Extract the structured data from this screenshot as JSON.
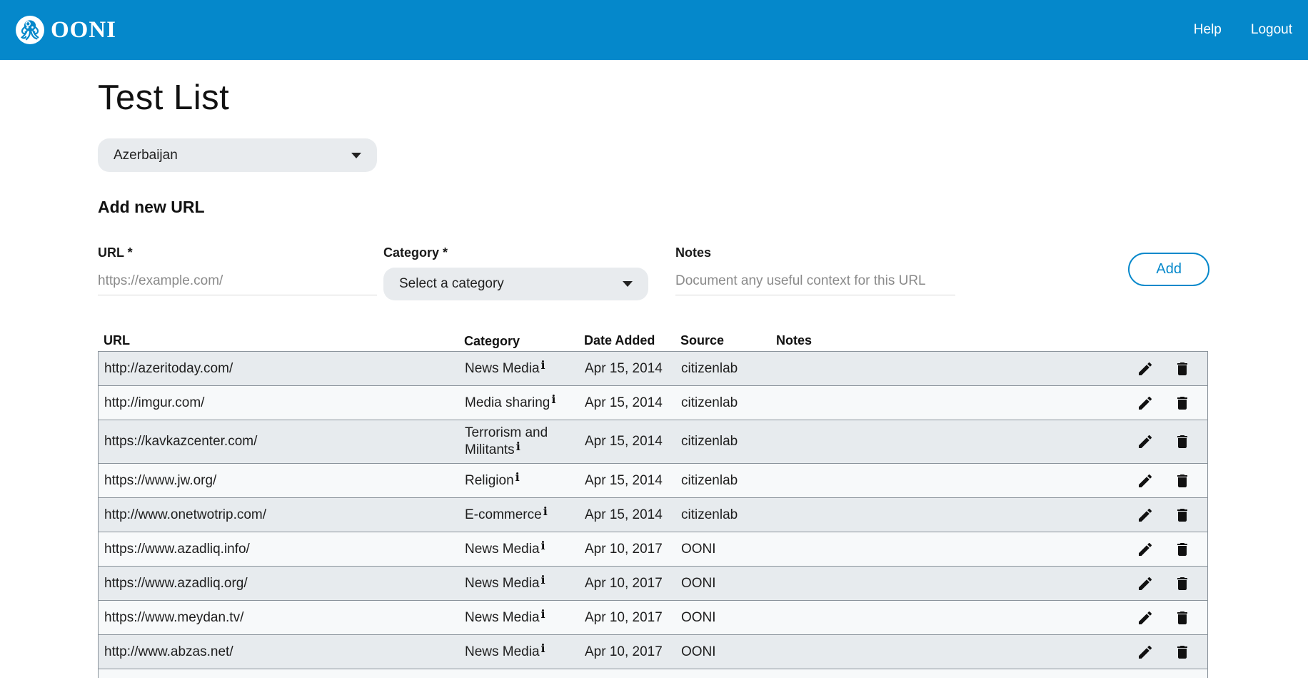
{
  "header": {
    "brand": "OONI",
    "nav": [
      {
        "label": "Help"
      },
      {
        "label": "Logout"
      }
    ]
  },
  "page": {
    "title": "Test List",
    "country_selector": {
      "value": "Azerbaijan"
    },
    "section_title": "Add new URL"
  },
  "form": {
    "url": {
      "label": "URL *",
      "placeholder": "https://example.com/",
      "value": ""
    },
    "category": {
      "label": "Category *",
      "placeholder": "Select a category"
    },
    "notes": {
      "label": "Notes",
      "placeholder": "Document any useful context for this URL",
      "value": ""
    },
    "add_button_label": "Add"
  },
  "table": {
    "columns": [
      "URL",
      "Category",
      "Date Added",
      "Source",
      "Notes"
    ],
    "rows": [
      {
        "url": "http://azeritoday.com/",
        "category": "News Media",
        "date_added": "Apr 15, 2014",
        "source": "citizenlab",
        "notes": ""
      },
      {
        "url": "http://imgur.com/",
        "category": "Media sharing",
        "date_added": "Apr 15, 2014",
        "source": "citizenlab",
        "notes": ""
      },
      {
        "url": "https://kavkazcenter.com/",
        "category": "Terrorism and Militants",
        "date_added": "Apr 15, 2014",
        "source": "citizenlab",
        "notes": ""
      },
      {
        "url": "https://www.jw.org/",
        "category": "Religion",
        "date_added": "Apr 15, 2014",
        "source": "citizenlab",
        "notes": ""
      },
      {
        "url": "http://www.onetwotrip.com/",
        "category": "E-commerce",
        "date_added": "Apr 15, 2014",
        "source": "citizenlab",
        "notes": ""
      },
      {
        "url": "https://www.azadliq.info/",
        "category": "News Media",
        "date_added": "Apr 10, 2017",
        "source": "OONI",
        "notes": ""
      },
      {
        "url": "https://www.azadliq.org/",
        "category": "News Media",
        "date_added": "Apr 10, 2017",
        "source": "OONI",
        "notes": ""
      },
      {
        "url": "https://www.meydan.tv/",
        "category": "News Media",
        "date_added": "Apr 10, 2017",
        "source": "OONI",
        "notes": ""
      },
      {
        "url": "http://www.abzas.net/",
        "category": "News Media",
        "date_added": "Apr 10, 2017",
        "source": "OONI",
        "notes": ""
      }
    ],
    "partial_row_visible": true
  },
  "icons": {
    "category_info": "i",
    "edit": "pencil",
    "delete": "trash",
    "dropdown": "triangle-down",
    "logo": "ooni-octopus"
  },
  "colors": {
    "header_bg": "#0588CB",
    "accent": "#0588CB",
    "row_stripe_dark": "#e7ebee",
    "row_stripe_light": "#f7f9fa",
    "table_border": "#8a939b"
  }
}
